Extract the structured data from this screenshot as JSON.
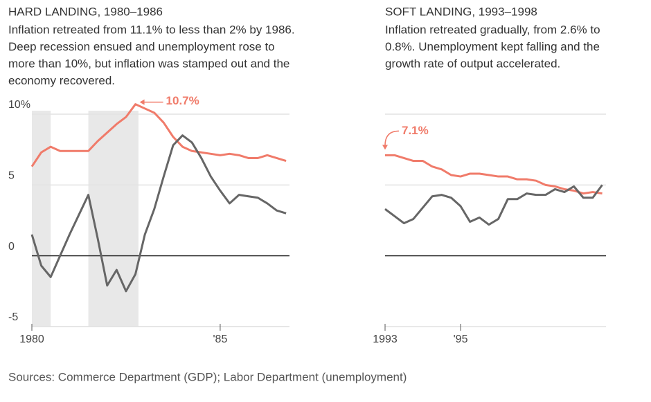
{
  "chart_data": [
    {
      "type": "line",
      "title": "HARD LANDING, 1980–1986",
      "subtitle": [
        "Inflation retreated from 11.1% to less than 2% by 1986.",
        "Deep recession ensued and unemployment rose to",
        "more than 10%, but inflation was stamped out and the",
        "economy recovered."
      ],
      "annotation": "10.7%",
      "x": [
        1980,
        1980.25,
        1980.5,
        1980.75,
        1981,
        1981.25,
        1981.5,
        1981.75,
        1982,
        1982.25,
        1982.5,
        1982.75,
        1983,
        1983.25,
        1983.5,
        1983.75,
        1984,
        1984.25,
        1984.5,
        1984.75,
        1985,
        1985.25,
        1985.5,
        1985.75,
        1986,
        1986.25,
        1986.5,
        1986.75
      ],
      "series": [
        {
          "color": "#f07b6a",
          "values": [
            6.3,
            7.3,
            7.7,
            7.4,
            7.4,
            7.4,
            7.4,
            8.1,
            8.7,
            9.3,
            9.8,
            10.7,
            10.4,
            10.1,
            9.4,
            8.4,
            7.7,
            7.4,
            7.3,
            7.2,
            7.1,
            7.2,
            7.1,
            6.9,
            6.9,
            7.1,
            6.9,
            6.7
          ]
        },
        {
          "color": "#666666",
          "values": [
            1.5,
            -0.7,
            -1.5,
            0,
            1.5,
            2.9,
            4.3,
            1.2,
            -2.1,
            -1,
            -2.5,
            -1.3,
            1.5,
            3.3,
            5.6,
            7.8,
            8.5,
            8,
            6.9,
            5.6,
            4.6,
            3.7,
            4.3,
            4.2,
            4.1,
            3.7,
            3.2,
            3.0
          ]
        }
      ],
      "shading": [
        [
          1980,
          1980.5
        ],
        [
          1981.5,
          1982.83
        ]
      ],
      "xlim": [
        1980,
        1986.84
      ],
      "xticks": [
        1980,
        {
          "value": 1985,
          "label": "'85"
        }
      ],
      "ylim": [
        -5,
        10
      ],
      "yticks": [
        {
          "value": 10,
          "label": "10%"
        },
        5,
        0,
        -5
      ],
      "ytick_labels": true,
      "grid": true
    },
    {
      "type": "line",
      "title": "SOFT LANDING, 1993–1998",
      "subtitle": [
        "Inflation retreated gradually, from 2.6% to",
        "0.8%. Unemployment kept falling and the",
        "growth rate of output accelerated."
      ],
      "annotation": "7.1%",
      "x": [
        1993,
        1993.25,
        1993.5,
        1993.75,
        1994,
        1994.25,
        1994.5,
        1994.75,
        1995,
        1995.25,
        1995.5,
        1995.75,
        1996,
        1996.25,
        1996.5,
        1996.75,
        1997,
        1997.25,
        1997.5,
        1997.75,
        1998,
        1998.25,
        1998.5,
        1998.75
      ],
      "series": [
        {
          "color": "#f07b6a",
          "values": [
            7.1,
            7.1,
            6.9,
            6.7,
            6.7,
            6.3,
            6.1,
            5.7,
            5.6,
            5.8,
            5.8,
            5.7,
            5.6,
            5.6,
            5.4,
            5.4,
            5.3,
            5.0,
            4.9,
            4.7,
            4.6,
            4.4,
            4.5,
            4.4
          ]
        },
        {
          "color": "#666666",
          "values": [
            3.3,
            2.8,
            2.3,
            2.6,
            3.4,
            4.2,
            4.3,
            4.1,
            3.5,
            2.4,
            2.7,
            2.2,
            2.6,
            4.0,
            4.0,
            4.4,
            4.3,
            4.3,
            4.7,
            4.5,
            4.9,
            4.1,
            4.1,
            5.0
          ]
        }
      ],
      "shading": [],
      "xlim": [
        1993,
        1998.85
      ],
      "xticks": [
        1993,
        {
          "value": 1995,
          "label": "'95"
        }
      ],
      "ylim": [
        -5,
        10
      ],
      "yticks": [
        10,
        5,
        0
      ],
      "ytick_labels": false,
      "grid": true
    }
  ],
  "source": "Sources: Commerce Department (GDP); Labor Department (unemployment)"
}
